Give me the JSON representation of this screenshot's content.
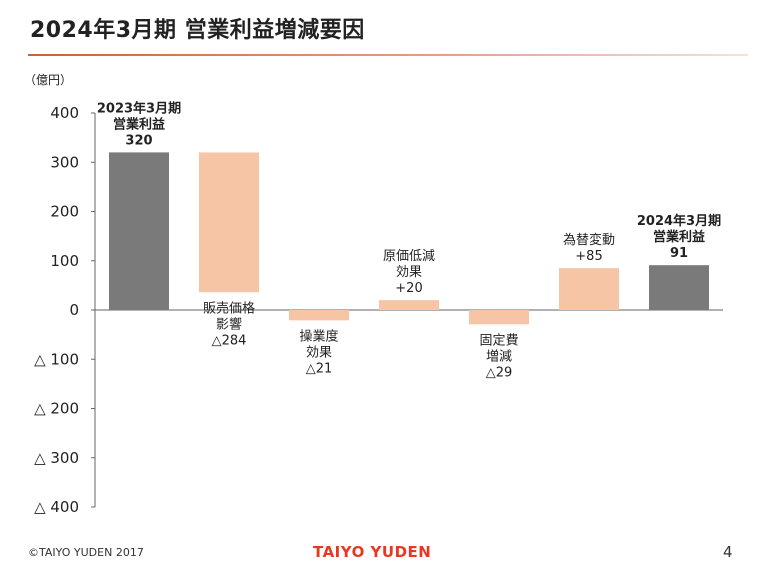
{
  "slide": {
    "title": "2024年3月期 営業利益増減要因",
    "footer_left": "©TAIYO YUDEN 2017",
    "footer_center": "TAIYO YUDEN",
    "page_number": "4"
  },
  "colors": {
    "total_bar": "#7a7a7a",
    "change_bar": "#f5c5a6",
    "axis": "#666666",
    "title_rule": "#d05f3a",
    "brand": "#e8381f"
  },
  "chart_data": {
    "type": "bar",
    "subtype": "waterfall",
    "unit_label": "（億円）",
    "ylim": [
      -400,
      400
    ],
    "y_ticks": [
      400,
      300,
      200,
      100,
      0,
      -100,
      -200,
      -300,
      -400
    ],
    "y_tick_labels": [
      "400",
      "300",
      "200",
      "100",
      "0",
      "△ 100",
      "△ 200",
      "△ 300",
      "△ 400"
    ],
    "bars": [
      {
        "label_lines": [
          "2023年3月期",
          "営業利益",
          "320"
        ],
        "value": 320,
        "start": 0,
        "end": 320,
        "kind": "total"
      },
      {
        "label_lines": [
          "販売価格",
          "影響",
          "△284"
        ],
        "value": -284,
        "start": 320,
        "end": 36,
        "kind": "change"
      },
      {
        "label_lines": [
          "操業度",
          "効果",
          "△21"
        ],
        "value": -21,
        "start": 0,
        "end": -21,
        "kind": "change"
      },
      {
        "label_lines": [
          "原価低減",
          "効果",
          "+20"
        ],
        "value": 20,
        "start": 0,
        "end": 20,
        "kind": "change"
      },
      {
        "label_lines": [
          "固定費",
          "増減",
          "△29"
        ],
        "value": -29,
        "start": 0,
        "end": -29,
        "kind": "change"
      },
      {
        "label_lines": [
          "為替変動",
          "+85"
        ],
        "value": 85,
        "start": 0,
        "end": 85,
        "kind": "change"
      },
      {
        "label_lines": [
          "2024年3月期",
          "営業利益",
          "91"
        ],
        "value": 91,
        "start": 0,
        "end": 91,
        "kind": "total"
      }
    ],
    "grid": false,
    "legend": "none"
  }
}
